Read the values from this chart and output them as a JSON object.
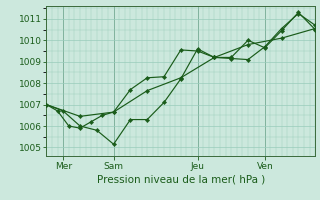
{
  "title": "",
  "xlabel": "Pression niveau de la mer( hPa )",
  "ylabel": "",
  "bg_color": "#cce8dd",
  "grid_color": "#99ccbb",
  "line_color": "#1a5c1a",
  "ylim": [
    1004.6,
    1011.6
  ],
  "xlim": [
    0,
    48
  ],
  "yticks": [
    1005,
    1006,
    1007,
    1008,
    1009,
    1010,
    1011
  ],
  "xtick_positions": [
    3,
    12,
    27,
    39
  ],
  "xtick_labels": [
    "Mer",
    "Sam",
    "Jeu",
    "Ven"
  ],
  "vlines": [
    3,
    12,
    27,
    39
  ],
  "series1": {
    "x": [
      0,
      2,
      4,
      6,
      8,
      10,
      12,
      15,
      18,
      21,
      24,
      27,
      30,
      33,
      36,
      39,
      42,
      45,
      48
    ],
    "y": [
      1007.0,
      1006.7,
      1006.0,
      1005.9,
      1006.2,
      1006.5,
      1006.65,
      1007.7,
      1008.25,
      1008.3,
      1009.55,
      1009.5,
      1009.2,
      1009.15,
      1009.1,
      1009.7,
      1010.55,
      1011.25,
      1010.7
    ]
  },
  "series2": {
    "x": [
      0,
      3,
      6,
      9,
      12,
      15,
      18,
      21,
      24,
      27,
      30,
      33,
      36,
      39,
      42,
      45,
      48
    ],
    "y": [
      1007.0,
      1006.7,
      1006.0,
      1005.8,
      1005.15,
      1006.3,
      1006.3,
      1007.1,
      1008.2,
      1009.6,
      1009.2,
      1009.2,
      1010.0,
      1009.65,
      1010.45,
      1011.3,
      1010.5
    ]
  },
  "series3": {
    "x": [
      0,
      6,
      12,
      18,
      24,
      30,
      36,
      42,
      48
    ],
    "y": [
      1007.0,
      1006.45,
      1006.65,
      1007.65,
      1008.25,
      1009.2,
      1009.8,
      1010.1,
      1010.55
    ]
  }
}
